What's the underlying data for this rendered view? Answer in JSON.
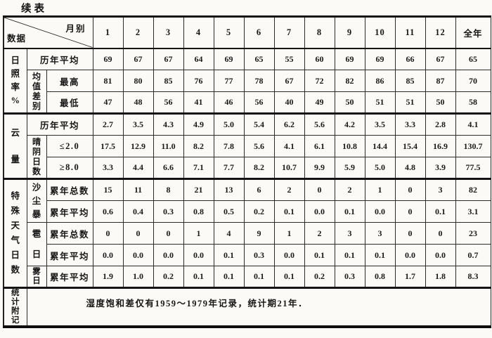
{
  "page": {
    "title": "续表"
  },
  "table": {
    "corner": {
      "top_right": "月别",
      "bottom_left": "数据"
    },
    "columns": [
      "1",
      "2",
      "3",
      "4",
      "5",
      "6",
      "7",
      "8",
      "9",
      "10",
      "11",
      "12",
      "全年"
    ],
    "sections": [
      {
        "group": "日照率%",
        "rows": [
          {
            "label": "历年平均",
            "values": [
              "69",
              "67",
              "67",
              "64",
              "69",
              "65",
              "55",
              "60",
              "69",
              "69",
              "66",
              "67",
              "65"
            ]
          },
          {
            "sub": "均值差别",
            "label": "最高",
            "values": [
              "81",
              "80",
              "85",
              "76",
              "77",
              "78",
              "67",
              "72",
              "82",
              "86",
              "85",
              "87",
              "70"
            ]
          },
          {
            "label": "最低",
            "values": [
              "47",
              "48",
              "56",
              "41",
              "46",
              "56",
              "40",
              "49",
              "50",
              "51",
              "51",
              "50",
              "58"
            ]
          }
        ]
      },
      {
        "group": "云量",
        "rows": [
          {
            "label": "历年平均",
            "values": [
              "2.7",
              "3.5",
              "4.3",
              "4.9",
              "5.0",
              "5.4",
              "6.2",
              "5.6",
              "4.2",
              "3.5",
              "3.3",
              "2.8",
              "4.1"
            ]
          },
          {
            "sub": "晴阴日数",
            "label": "≤2.0",
            "values": [
              "17.5",
              "12.9",
              "11.0",
              "8.2",
              "7.8",
              "5.6",
              "4.1",
              "6.1",
              "10.8",
              "14.4",
              "15.4",
              "16.9",
              "130.7"
            ]
          },
          {
            "label": "≥8.0",
            "values": [
              "3.3",
              "4.4",
              "6.6",
              "7.1",
              "7.7",
              "8.2",
              "10.7",
              "9.9",
              "5.9",
              "5.0",
              "4.8",
              "3.9",
              "77.5"
            ]
          }
        ]
      },
      {
        "group": "特殊天气日数",
        "rows": [
          {
            "sub": "沙尘暴",
            "label": "累年总数",
            "values": [
              "15",
              "11",
              "8",
              "21",
              "13",
              "6",
              "2",
              "0",
              "2",
              "1",
              "0",
              "3",
              "82"
            ]
          },
          {
            "label": "累年平均",
            "values": [
              "0.6",
              "0.4",
              "0.3",
              "0.8",
              "0.5",
              "0.2",
              "0.1",
              "0.0",
              "0.1",
              "0.0",
              "0",
              "0.1",
              "3.1"
            ]
          },
          {
            "sub": "雹日",
            "label": "累年总数",
            "values": [
              "0",
              "0",
              "0",
              "1",
              "4",
              "9",
              "1",
              "2",
              "3",
              "3",
              "0",
              "0",
              "23"
            ]
          },
          {
            "label": "累年平均",
            "values": [
              "0.0",
              "0.0",
              "0.0",
              "0.0",
              "0.1",
              "0.3",
              "0.0",
              "0.1",
              "0.1",
              "0.1",
              "0.0",
              "0.0",
              "0.7"
            ]
          },
          {
            "sub": "雾日",
            "label": "累年平均",
            "values": [
              "1.9",
              "1.0",
              "0.2",
              "0.1",
              "0.1",
              "0.1",
              "0.1",
              "0.2",
              "0.3",
              "0.8",
              "1.7",
              "1.8",
              "8.3"
            ]
          }
        ]
      }
    ],
    "footer": {
      "group": "统计附记",
      "note": "湿度饱和差仅有1959～1979年记录，统计期21年．"
    }
  }
}
